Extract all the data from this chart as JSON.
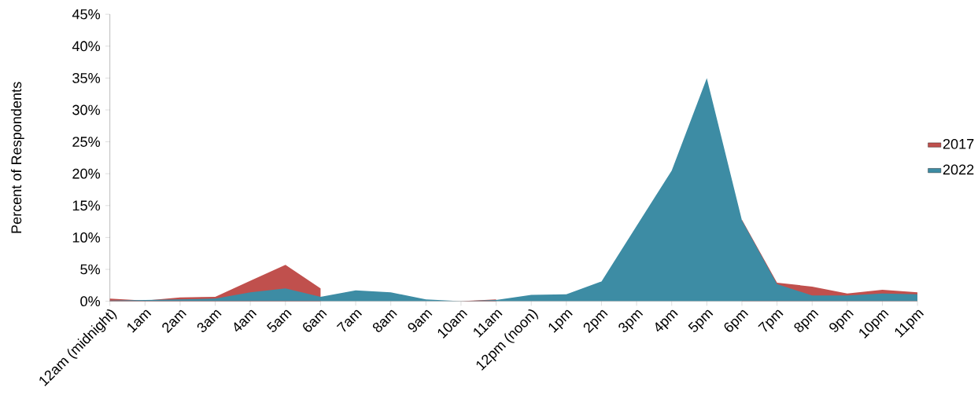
{
  "chart_data": {
    "type": "area",
    "ylabel": "Percent of Respondents",
    "categories": [
      "12am (midnight)",
      "1am",
      "2am",
      "3am",
      "4am",
      "5am",
      "6am",
      "7am",
      "8am",
      "9am",
      "10am",
      "11am",
      "12pm (noon)",
      "1pm",
      "2pm",
      "3pm",
      "4pm",
      "5pm",
      "6pm",
      "7pm",
      "8pm",
      "9pm",
      "10pm",
      "11pm"
    ],
    "series": [
      {
        "name": "2017",
        "color": "#c0504d",
        "values": [
          0.4,
          0.1,
          0.6,
          0.7,
          3.2,
          5.7,
          2.0,
          null,
          null,
          null,
          0.0,
          0.3,
          null,
          null,
          null,
          null,
          null,
          null,
          12.8,
          2.9,
          2.3,
          1.2,
          1.8,
          1.4
        ]
      },
      {
        "name": "2022",
        "color": "#3d8ca4",
        "values": [
          0.1,
          0.2,
          0.3,
          0.4,
          1.4,
          2.0,
          0.7,
          1.7,
          1.4,
          0.3,
          0.0,
          0.2,
          1.0,
          1.1,
          3.1,
          11.8,
          20.5,
          35.0,
          12.7,
          2.7,
          0.9,
          0.9,
          1.2,
          1.1
        ]
      }
    ],
    "ylim": [
      0,
      45
    ],
    "yticks": [
      {
        "value": 0,
        "label": "0%"
      },
      {
        "value": 5,
        "label": "5%"
      },
      {
        "value": 10,
        "label": "10%"
      },
      {
        "value": 15,
        "label": "15%"
      },
      {
        "value": 20,
        "label": "20%"
      },
      {
        "value": 25,
        "label": "25%"
      },
      {
        "value": 30,
        "label": "30%"
      },
      {
        "value": 35,
        "label": "35%"
      },
      {
        "value": 40,
        "label": "40%"
      },
      {
        "value": 45,
        "label": "45%"
      }
    ],
    "legend": "right",
    "grid": false
  }
}
